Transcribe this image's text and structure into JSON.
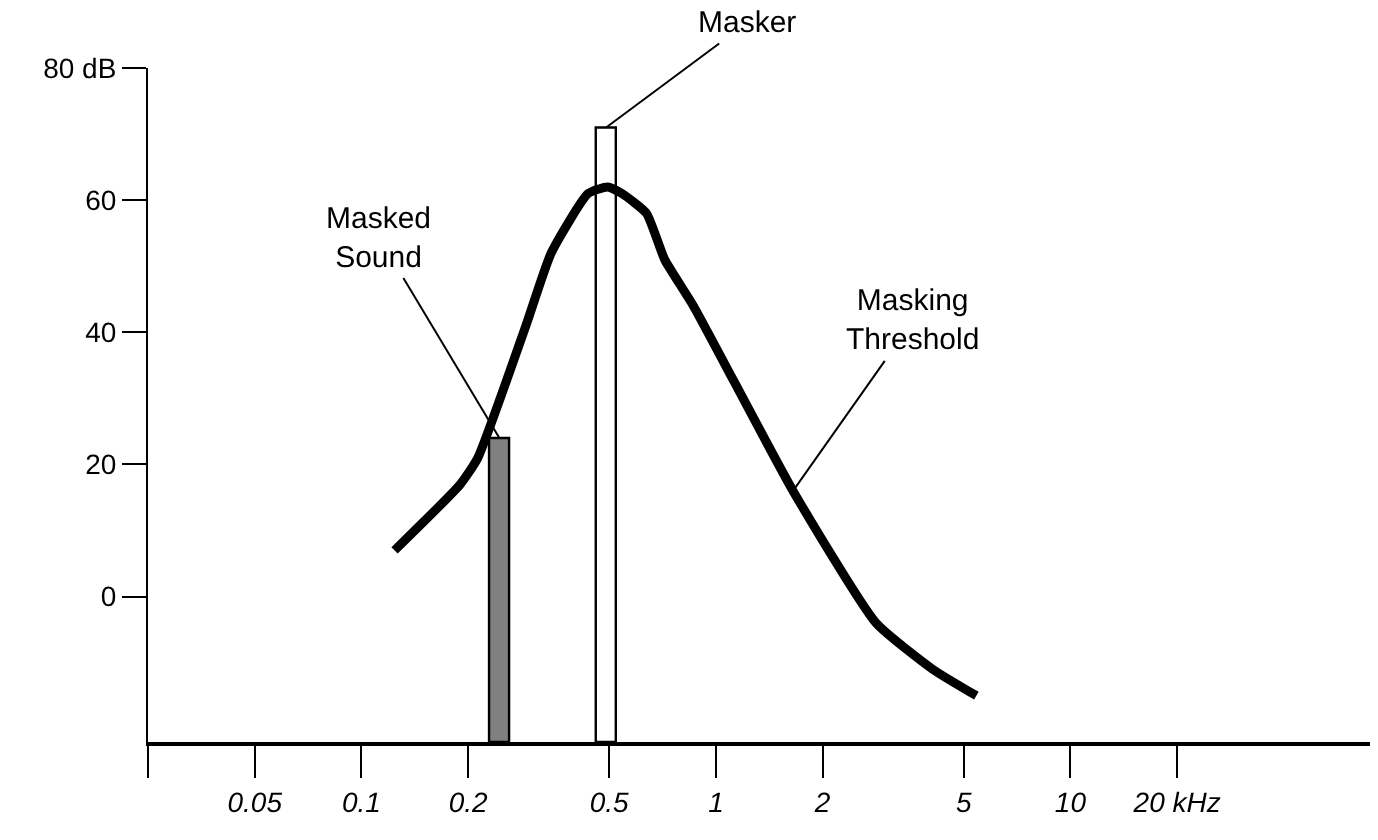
{
  "chart_data": {
    "type": "bar",
    "log": "x",
    "xlim": [
      0.025,
      70
    ],
    "xticks": [
      {
        "value": 0.025,
        "label": null
      },
      0.05,
      0.1,
      0.2,
      0.5,
      1,
      2,
      5,
      10,
      {
        "value": 20,
        "label": "20 kHz"
      }
    ],
    "ylim": [
      -22,
      80
    ],
    "yticks": [
      0,
      20,
      40,
      60,
      {
        "value": 80,
        "label": "80 dB"
      }
    ],
    "legend": false,
    "series": [
      {
        "color": "#808080",
        "x": [
          0.245
        ],
        "base": [
          -22
        ],
        "values": [
          46
        ]
      },
      {
        "color": "#ffffff",
        "x": [
          0.49
        ],
        "base": [
          -22
        ],
        "values": [
          93
        ]
      },
      {
        "type": "line",
        "color": "#000000",
        "x": [
          0.124,
          0.19,
          0.213,
          0.291,
          0.343,
          0.436,
          0.495,
          0.543,
          0.637,
          0.717,
          0.864,
          1.65,
          2.83,
          4.09,
          5.43
        ],
        "values": [
          7,
          17,
          21,
          41,
          52,
          61,
          62,
          61,
          58,
          51,
          44,
          16,
          -4,
          -11,
          -15
        ]
      }
    ],
    "annotations": [
      {
        "text": "Masker",
        "x": 0.49,
        "y": 71
      },
      {
        "text": "Masked\nSound",
        "x": 0.245,
        "y": 24
      },
      {
        "text": "Masking\nThreshold",
        "x": 1.65,
        "y": 16
      }
    ]
  }
}
